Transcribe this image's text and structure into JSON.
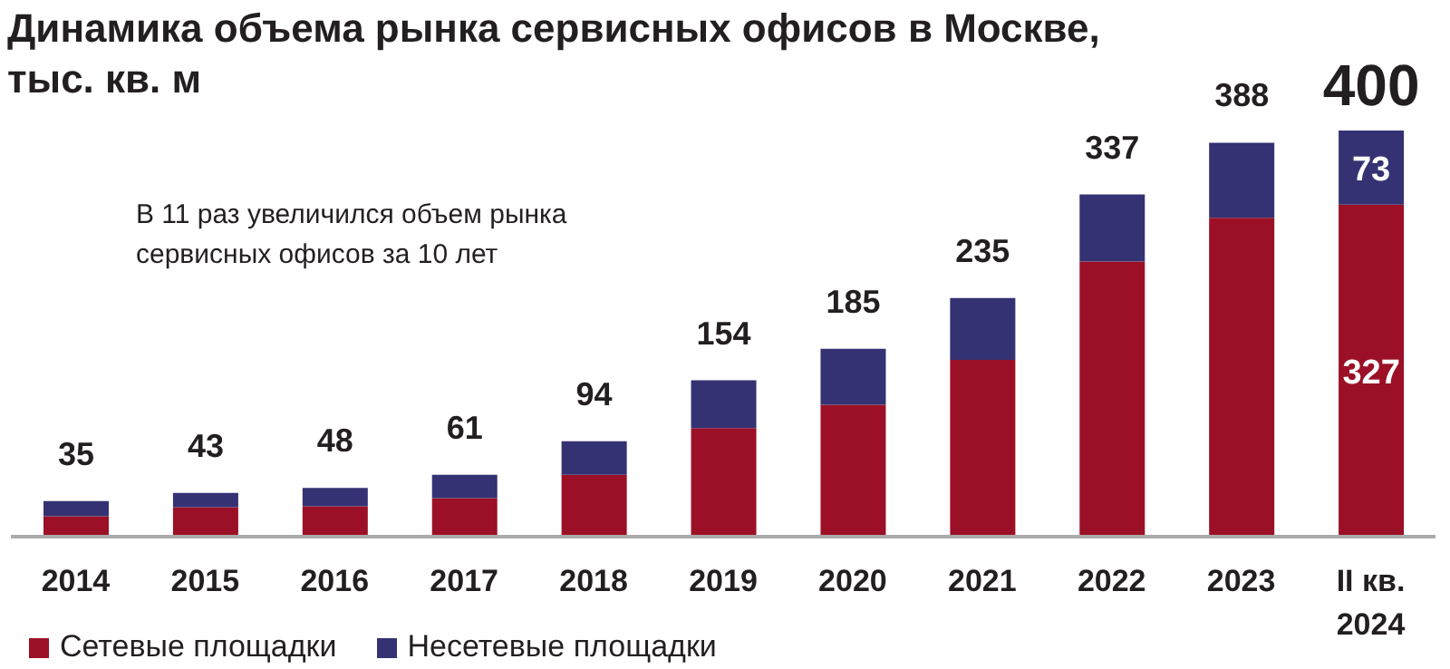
{
  "chart_data": {
    "type": "bar",
    "title": "Динамика объема рынка сервисных офисов в Москве, тыс. кв. м",
    "categories": [
      "2014",
      "2015",
      "2016",
      "2017",
      "2018",
      "2019",
      "2020",
      "2021",
      "2022",
      "2023",
      "II кв. 2024"
    ],
    "stacked": true,
    "series": [
      {
        "name": "Сетевые площадки",
        "color": "#9b1026",
        "values": [
          20,
          29,
          30,
          38,
          61,
          107,
          130,
          174,
          271,
          314,
          327
        ],
        "value_labels": [
          null,
          null,
          null,
          null,
          null,
          null,
          null,
          null,
          null,
          null,
          "327"
        ]
      },
      {
        "name": "Несетевые площадки",
        "color": "#343272",
        "values": [
          15,
          14,
          18,
          23,
          33,
          47,
          55,
          61,
          66,
          74,
          73
        ],
        "value_labels": [
          null,
          null,
          null,
          null,
          null,
          null,
          null,
          null,
          null,
          null,
          "73"
        ]
      }
    ],
    "totals": [
      "35",
      "43",
      "48",
      "61",
      "94",
      "154",
      "185",
      "235",
      "337",
      "388",
      "400"
    ],
    "annotations": [
      "В 11 раз увеличился объем рынка сервисных офисов за 10 лет"
    ],
    "legend": "bottom left"
  }
}
